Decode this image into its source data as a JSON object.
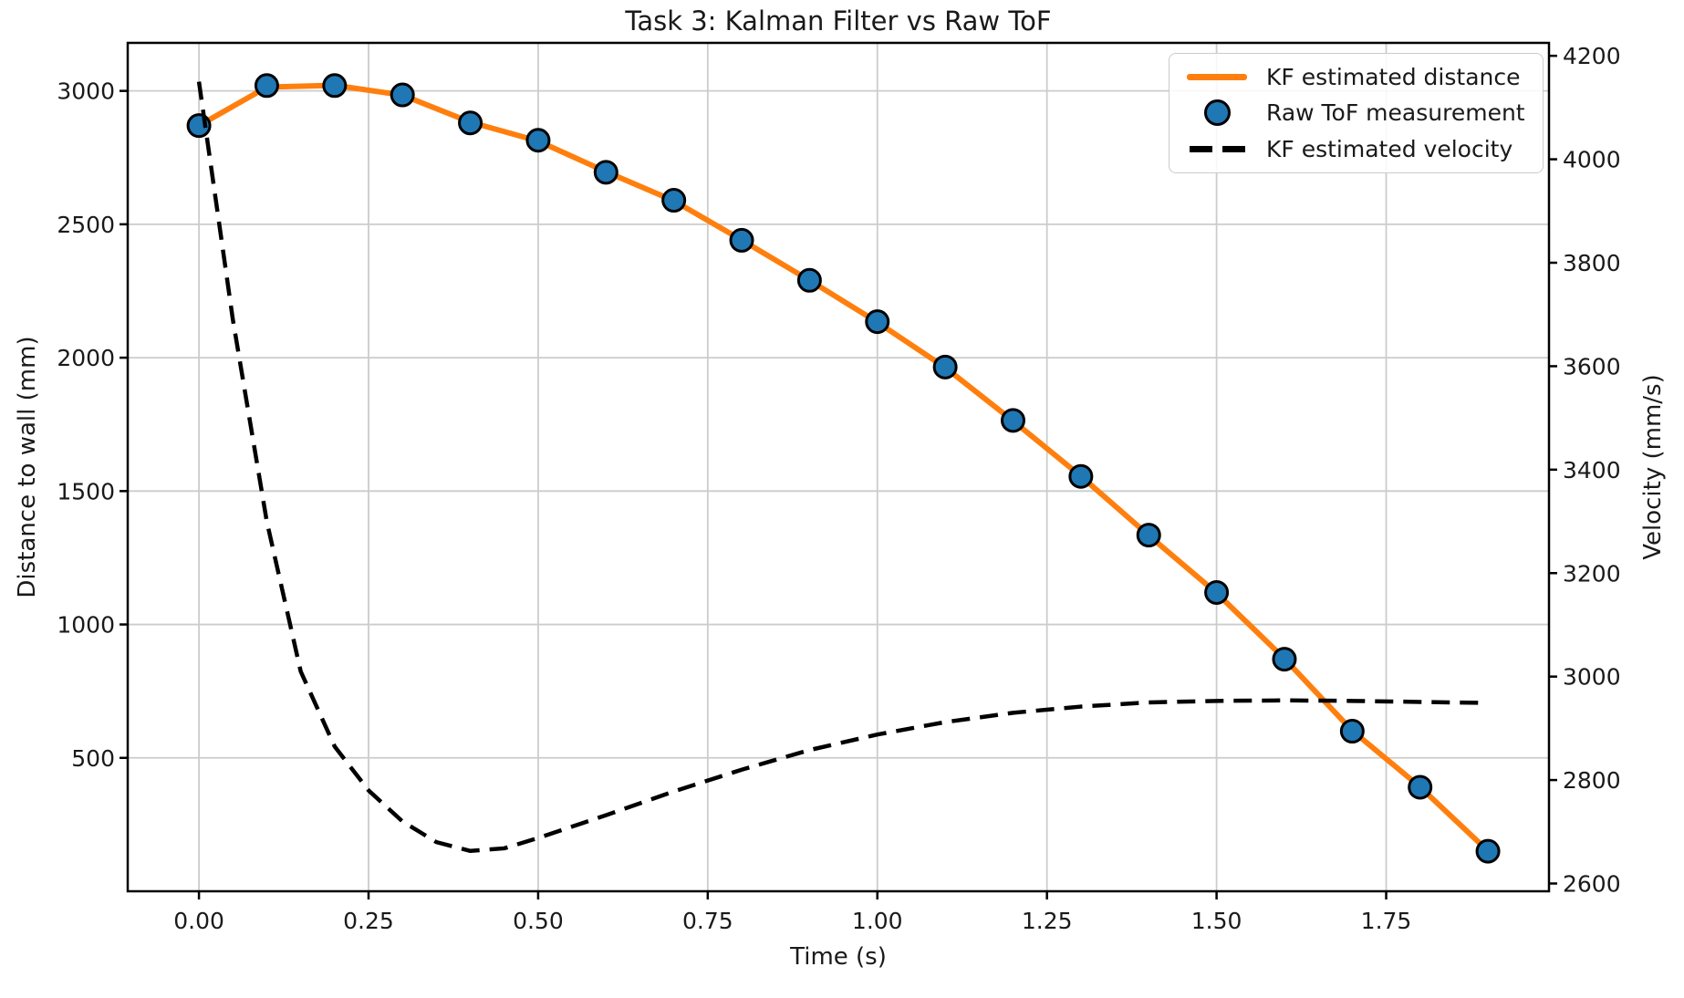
{
  "title": "Task 3: Kalman Filter vs Raw ToF",
  "colors": {
    "kf_distance": "#ff7f0e",
    "raw_tof_fill": "#1f77b4",
    "marker_edge": "#000000",
    "kf_velocity": "#000000",
    "grid": "#cccccc",
    "spine": "#000000",
    "text": "#1a1a1a",
    "background": "#ffffff"
  },
  "chart_data": {
    "type": "line",
    "title": "Task 3: Kalman Filter vs Raw ToF",
    "xlabel": "Time (s)",
    "ylabel_left": "Distance to wall (mm)",
    "ylabel_right": "Velocity (mm/s)",
    "grid": true,
    "legend_position": "upper right",
    "xlim": [
      -0.105,
      1.99
    ],
    "ylim_left": [
      0,
      3180
    ],
    "ylim_right": [
      2585,
      4225
    ],
    "xticks": {
      "values": [
        0.0,
        0.25,
        0.5,
        0.75,
        1.0,
        1.25,
        1.5,
        1.75
      ],
      "labels": [
        "0.00",
        "0.25",
        "0.50",
        "0.75",
        "1.00",
        "1.25",
        "1.50",
        "1.75"
      ]
    },
    "yticks_left": {
      "values": [
        500,
        1000,
        1500,
        2000,
        2500,
        3000
      ],
      "labels": [
        "500",
        "1000",
        "1500",
        "2000",
        "2500",
        "3000"
      ]
    },
    "yticks_right": {
      "values": [
        2600,
        2800,
        3000,
        3200,
        3400,
        3600,
        3800,
        4000,
        4200
      ],
      "labels": [
        "2600",
        "2800",
        "3000",
        "3200",
        "3400",
        "3600",
        "3800",
        "4000",
        "4200"
      ]
    },
    "series": [
      {
        "name": "KF estimated distance",
        "kind": "line",
        "axis": "left",
        "color": "#ff7f0e",
        "linewidth": 6,
        "x": [
          0.0,
          0.1,
          0.2,
          0.3,
          0.4,
          0.5,
          0.6,
          0.7,
          0.8,
          0.9,
          1.0,
          1.1,
          1.2,
          1.3,
          1.4,
          1.5,
          1.6,
          1.7,
          1.8,
          1.9
        ],
        "y": [
          2870,
          3014,
          3021,
          2984,
          2883,
          2812,
          2697,
          2588,
          2441,
          2290,
          2133,
          1963,
          1763,
          1556,
          1334,
          1118,
          872,
          602,
          391,
          151
        ]
      },
      {
        "name": "Raw ToF measurement",
        "kind": "scatter",
        "axis": "left",
        "color": "#1f77b4",
        "edge_color": "#000000",
        "marker": "o",
        "marker_radius": 12,
        "x": [
          0.0,
          0.1,
          0.2,
          0.3,
          0.4,
          0.5,
          0.6,
          0.7,
          0.8,
          0.9,
          1.0,
          1.1,
          1.2,
          1.3,
          1.4,
          1.5,
          1.6,
          1.7,
          1.8,
          1.9
        ],
        "y": [
          2870,
          3020,
          3020,
          2985,
          2880,
          2815,
          2695,
          2590,
          2440,
          2290,
          2135,
          1965,
          1765,
          1555,
          1335,
          1120,
          870,
          600,
          390,
          150
        ]
      },
      {
        "name": "KF estimated velocity",
        "kind": "dashed-line",
        "axis": "right",
        "color": "#000000",
        "linewidth": 4.5,
        "x": [
          0.0,
          0.05,
          0.1,
          0.15,
          0.2,
          0.25,
          0.3,
          0.35,
          0.4,
          0.45,
          0.5,
          0.6,
          0.7,
          0.8,
          0.9,
          1.0,
          1.1,
          1.2,
          1.3,
          1.4,
          1.5,
          1.6,
          1.7,
          1.8,
          1.9
        ],
        "y": [
          4150,
          3690,
          3300,
          3010,
          2865,
          2780,
          2720,
          2680,
          2663,
          2668,
          2688,
          2732,
          2778,
          2820,
          2858,
          2888,
          2912,
          2930,
          2942,
          2950,
          2953,
          2954,
          2953,
          2951,
          2949
        ]
      }
    ]
  }
}
